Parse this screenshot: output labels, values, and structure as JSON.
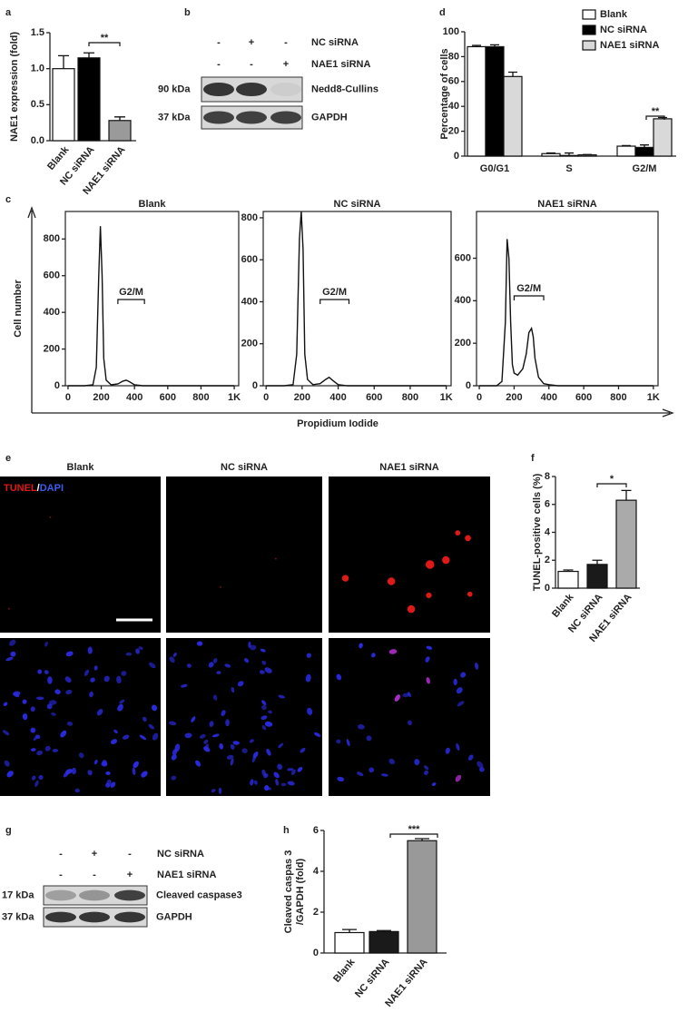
{
  "panel_labels": [
    "a",
    "b",
    "c",
    "d",
    "e",
    "f",
    "g",
    "h"
  ],
  "chart_data": [
    {
      "type": "bar",
      "ylabel": "NAE1 expression (fold)",
      "categories": [
        "Blank",
        "NC siRNA",
        "NAE1 siRNA"
      ],
      "values": [
        1.0,
        1.15,
        0.28
      ],
      "errors": [
        0.18,
        0.07,
        0.05
      ],
      "colors": [
        "#ffffff",
        "#000000",
        "#9a9a9a"
      ],
      "ylim": [
        0,
        1.5
      ],
      "yticks": [
        {
          "value": 0,
          "label": "0.0"
        },
        0.5,
        {
          "value": 1,
          "label": "1.0"
        },
        1.5
      ],
      "annotation": "**"
    },
    {
      "type": "bar",
      "ylabel": "Percentage of cells",
      "categories": [
        "G0/G1",
        "S",
        "G2/M"
      ],
      "series": [
        {
          "name": "Blank",
          "color": "#ffffff",
          "values": [
            88,
            2,
            8
          ],
          "errors": [
            1,
            0.5,
            0.5
          ]
        },
        {
          "name": "NC siRNA",
          "color": "#000000",
          "values": [
            88,
            0.5,
            7
          ],
          "errors": [
            1.5,
            2,
            2
          ]
        },
        {
          "name": "NAE1 siRNA",
          "color": "#d9d9d9",
          "values": [
            64,
            1,
            30
          ],
          "errors": [
            3.5,
            0.3,
            1
          ]
        }
      ],
      "ylim": [
        0,
        100
      ],
      "yticks": [
        0,
        20,
        40,
        60,
        80,
        100
      ],
      "legend": "upper right",
      "annotation": "**"
    },
    {
      "type": "line",
      "title": "Blank",
      "xlabel": "Propidium Iodide",
      "ylabel": "Cell number",
      "x": [
        0,
        100,
        150,
        170,
        185,
        195,
        205,
        215,
        230,
        260,
        300,
        330,
        350,
        370,
        400,
        450,
        1000
      ],
      "values": [
        0,
        0,
        5,
        100,
        600,
        870,
        600,
        150,
        30,
        5,
        10,
        25,
        30,
        22,
        5,
        0,
        0
      ],
      "xlim": [
        -16,
        1027
      ],
      "xticks": [
        0,
        200,
        400,
        600,
        800,
        {
          "value": 1000,
          "label": "1K"
        }
      ],
      "ylim": [
        0,
        950
      ],
      "yticks": [
        0,
        200,
        400,
        600,
        800
      ],
      "annotation": "G2/M"
    },
    {
      "type": "line",
      "title": "NC siRNA",
      "x": [
        0,
        100,
        150,
        170,
        185,
        195,
        205,
        215,
        230,
        260,
        300,
        330,
        350,
        370,
        400,
        450,
        1000
      ],
      "values": [
        0,
        0,
        5,
        150,
        700,
        830,
        650,
        150,
        30,
        5,
        10,
        30,
        40,
        25,
        5,
        0,
        0
      ],
      "xlim": [
        -16,
        1027
      ],
      "xticks": [
        0,
        200,
        400,
        600,
        800,
        {
          "value": 1000,
          "label": "1K"
        }
      ],
      "ylim": [
        0,
        830
      ],
      "yticks": [
        0,
        200,
        400,
        600,
        800
      ],
      "annotation": "G2/M"
    },
    {
      "type": "line",
      "title": "NAE1 siRNA",
      "x": [
        0,
        100,
        130,
        150,
        160,
        170,
        180,
        190,
        200,
        220,
        250,
        270,
        285,
        300,
        310,
        320,
        340,
        370,
        400,
        450,
        1000
      ],
      "values": [
        0,
        0,
        20,
        300,
        690,
        600,
        300,
        100,
        60,
        50,
        80,
        150,
        250,
        270,
        230,
        130,
        40,
        10,
        5,
        0,
        0
      ],
      "xlim": [
        -16,
        1027
      ],
      "xticks": [
        0,
        200,
        400,
        600,
        800,
        {
          "value": 1000,
          "label": "1K"
        }
      ],
      "ylim": [
        0,
        820
      ],
      "yticks": [
        0,
        200,
        400,
        600
      ],
      "annotation": "G2/M"
    },
    {
      "type": "bar",
      "ylabel": "TUNEL-positive cells (%)",
      "categories": [
        "Blank",
        "NC siRNA",
        "NAE1 siRNA"
      ],
      "values": [
        1.2,
        1.7,
        6.3
      ],
      "errors": [
        0.1,
        0.3,
        0.7
      ],
      "colors": [
        "#ffffff",
        "#1a1a1a",
        "#aaaaaa"
      ],
      "ylim": [
        0,
        8
      ],
      "yticks": [
        0,
        2,
        4,
        6,
        8
      ],
      "annotation": "*"
    },
    {
      "type": "bar",
      "ylabel": [
        "Cleaved caspas 3",
        "/GAPDH (fold)"
      ],
      "categories": [
        "Blank",
        "NC siRNA",
        "NAE1 siRNA"
      ],
      "values": [
        1.0,
        1.05,
        5.5
      ],
      "errors": [
        0.15,
        0.05,
        0.1
      ],
      "colors": [
        "#ffffff",
        "#1a1a1a",
        "#999999"
      ],
      "ylim": [
        0,
        6
      ],
      "yticks": [
        0,
        2,
        4,
        6
      ],
      "annotation": "***"
    }
  ],
  "blots": [
    {
      "conditions": [
        {
          "name": "NC siRNA",
          "signs": [
            "-",
            "+",
            "-"
          ]
        },
        {
          "name": "NAE1 siRNA",
          "signs": [
            "-",
            "-",
            "+"
          ]
        }
      ],
      "bands": [
        {
          "size": "90 kDa",
          "name": "Nedd8-Cullins"
        },
        {
          "size": "37 kDa",
          "name": "GAPDH"
        }
      ]
    },
    {
      "conditions": [
        {
          "name": "NC siRNA",
          "signs": [
            "-",
            "+",
            "-"
          ]
        },
        {
          "name": "NAE1 siRNA",
          "signs": [
            "-",
            "-",
            "+"
          ]
        }
      ],
      "bands": [
        {
          "size": "17 kDa",
          "name": "Cleaved caspase3"
        },
        {
          "size": "37 kDa",
          "name": "GAPDH"
        }
      ]
    }
  ],
  "micrographs": {
    "columns": [
      "Blank",
      "NC siRNA",
      "NAE1 siRNA"
    ],
    "stain": [
      "TUNEL",
      "/",
      "DAPI"
    ]
  }
}
